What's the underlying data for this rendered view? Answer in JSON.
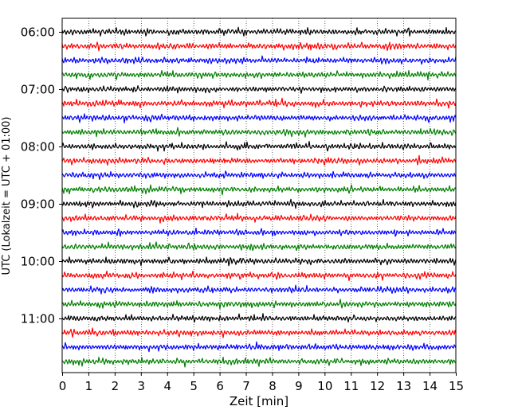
{
  "chart_data": {
    "type": "line",
    "title": "",
    "xlabel": "Zeit  [min]",
    "ylabel": "UTC (Lokalzeit = UTC + 01:00)",
    "xlim": [
      0,
      15
    ],
    "x_ticks": [
      "0",
      "1",
      "2",
      "3",
      "4",
      "5",
      "6",
      "7",
      "8",
      "9",
      "10",
      "11",
      "12",
      "13",
      "14",
      "15"
    ],
    "y_tick_labels": [
      "06:00",
      "07:00",
      "08:00",
      "09:00",
      "10:00",
      "11:00"
    ],
    "trace_start_times": [
      "06:00",
      "06:15",
      "06:30",
      "06:45",
      "07:00",
      "07:15",
      "07:30",
      "07:45",
      "08:00",
      "08:15",
      "08:30",
      "08:45",
      "09:00",
      "09:15",
      "09:30",
      "09:45",
      "10:00",
      "10:15",
      "10:30",
      "10:45",
      "11:00",
      "11:15",
      "11:30",
      "11:45"
    ],
    "trace_minutes": 15,
    "trace_colors": [
      "#000000",
      "#ff0000",
      "#0000ff",
      "#007f00"
    ],
    "grid": {
      "vertical_dotted": true,
      "horizontal": false
    },
    "legend": "none"
  }
}
